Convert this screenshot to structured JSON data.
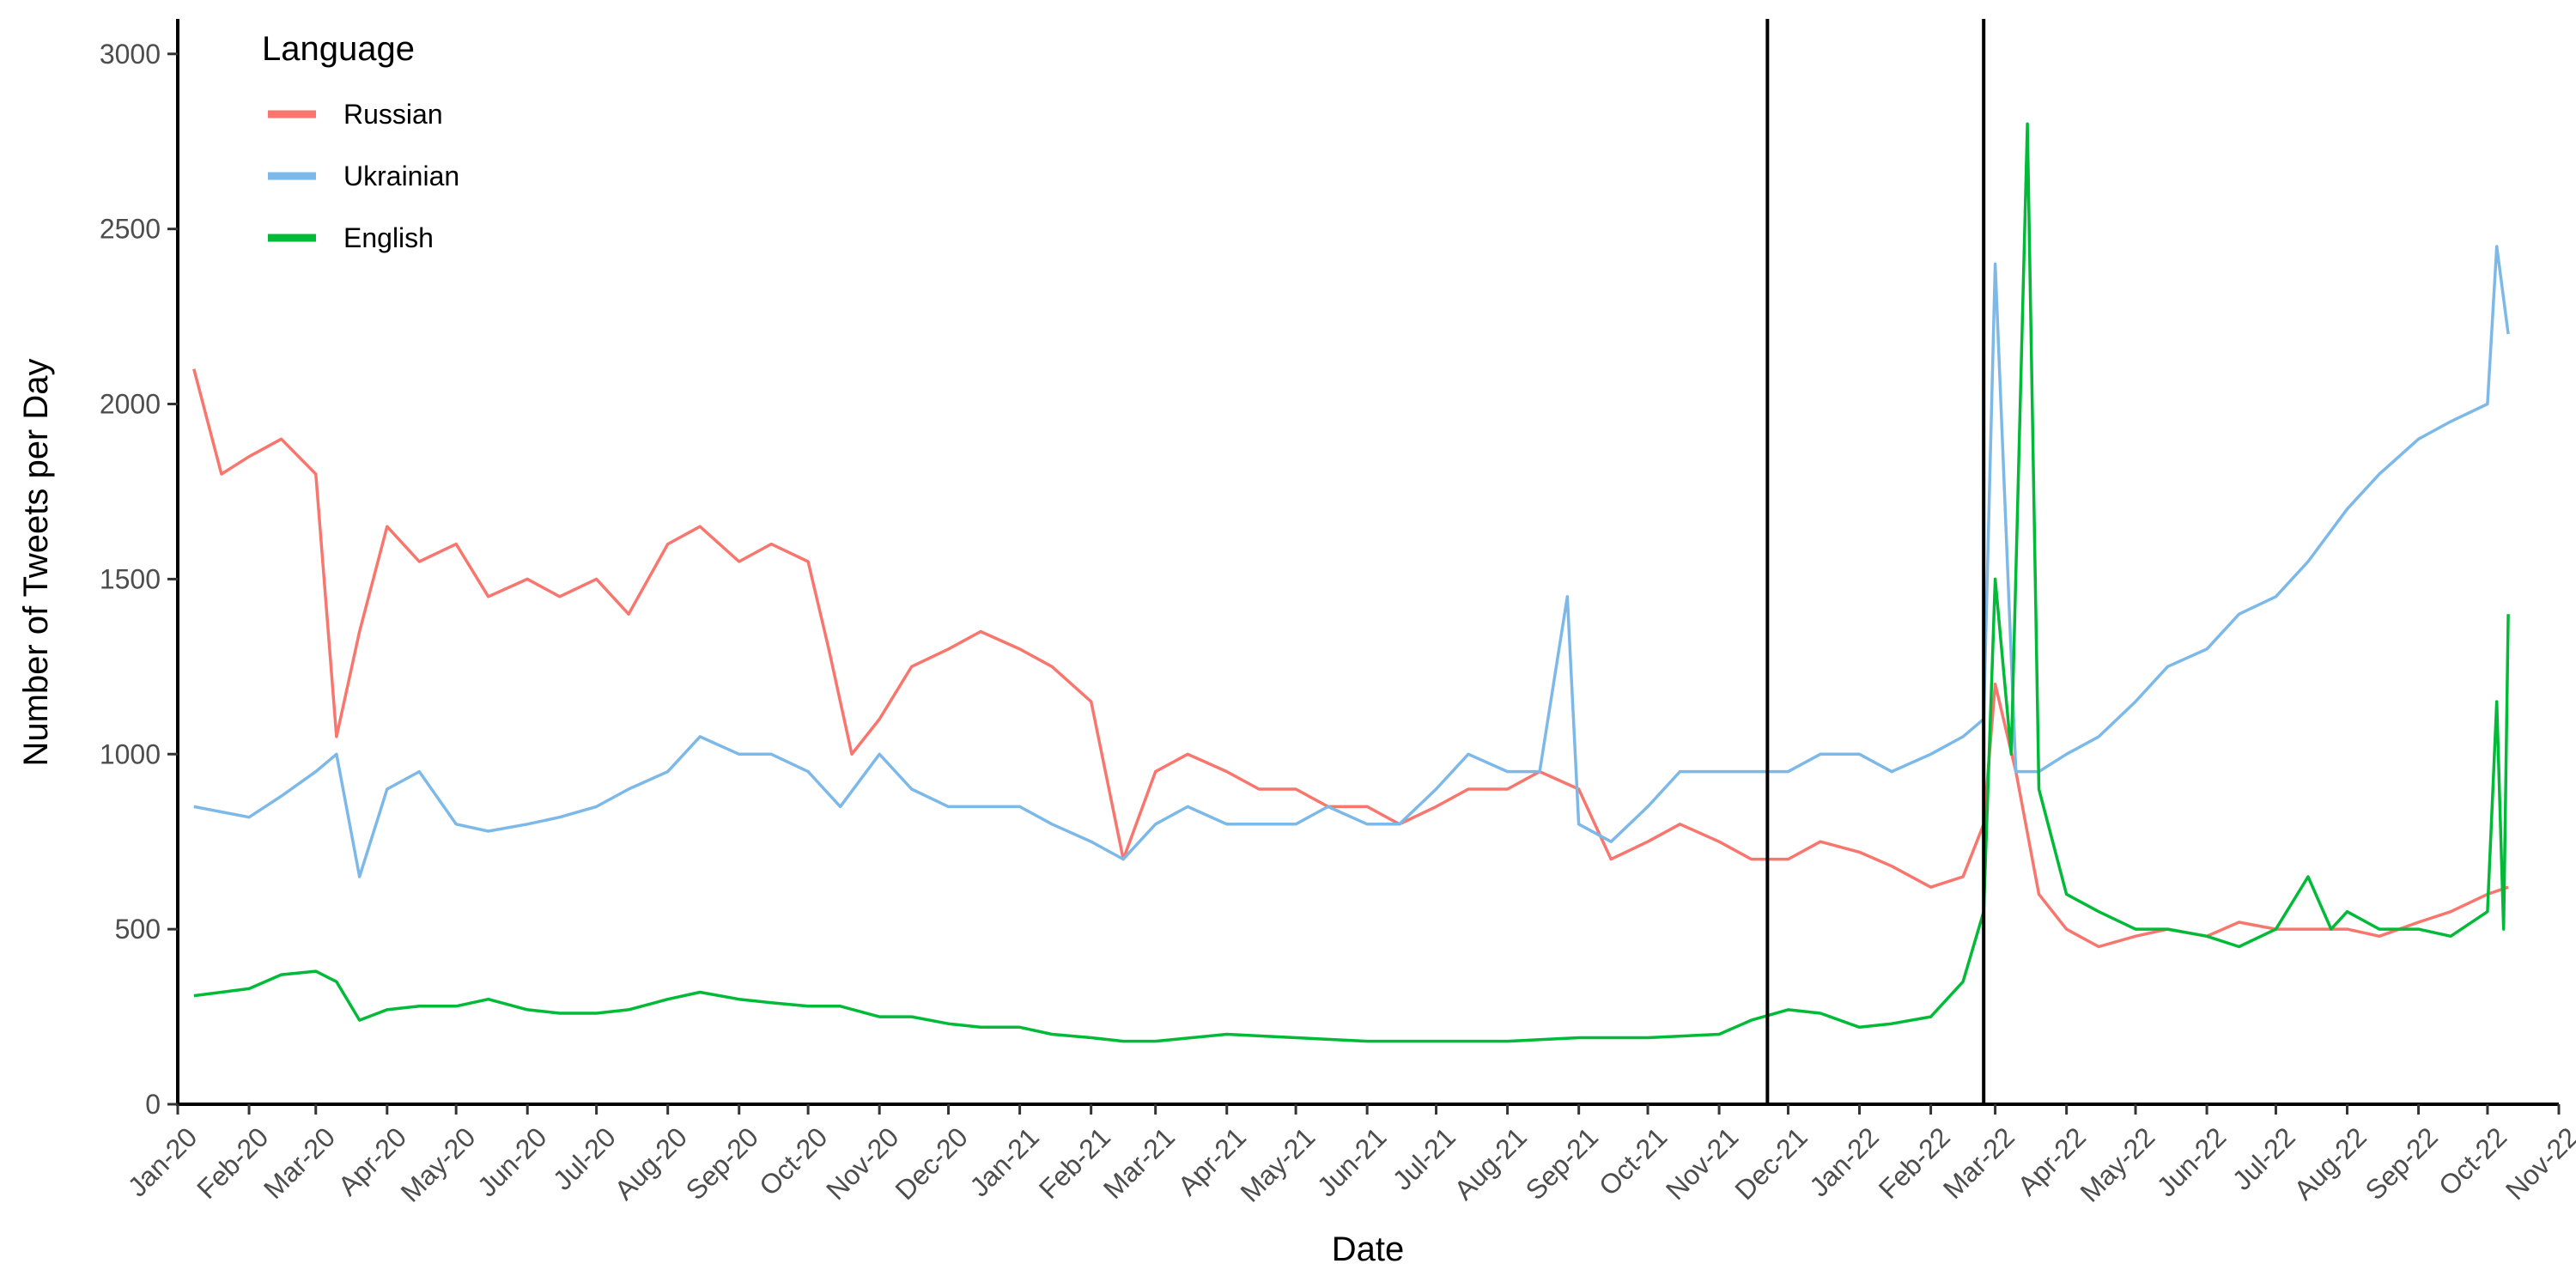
{
  "chart_data": {
    "type": "line",
    "title": "",
    "xlabel": "Date",
    "ylabel": "Number of Tweets per Day",
    "xlim": [
      "2020-01-01",
      "2022-11-01"
    ],
    "ylim": [
      0,
      3100
    ],
    "y_ticks": [
      0,
      500,
      1000,
      1500,
      2000,
      2500,
      3000
    ],
    "x_ticks": [
      "2020-01-01",
      "2020-02-01",
      "2020-03-01",
      "2020-04-01",
      "2020-05-01",
      "2020-06-01",
      "2020-07-01",
      "2020-08-01",
      "2020-09-01",
      "2020-10-01",
      "2020-11-01",
      "2020-12-01",
      "2021-01-01",
      "2021-02-01",
      "2021-03-01",
      "2021-04-01",
      "2021-05-01",
      "2021-06-01",
      "2021-07-01",
      "2021-08-01",
      "2021-09-01",
      "2021-10-01",
      "2021-11-01",
      "2021-12-01",
      "2022-01-01",
      "2022-02-01",
      "2022-03-01",
      "2022-04-01",
      "2022-05-01",
      "2022-06-01",
      "2022-07-01",
      "2022-08-01",
      "2022-09-01",
      "2022-10-01",
      "2022-11-01"
    ],
    "x_tick_labels": [
      "Jan-20",
      "Feb-20",
      "Mar-20",
      "Apr-20",
      "May-20",
      "Jun-20",
      "Jul-20",
      "Aug-20",
      "Sep-20",
      "Oct-20",
      "Nov-20",
      "Dec-20",
      "Jan-21",
      "Feb-21",
      "Mar-21",
      "Apr-21",
      "May-21",
      "Jun-21",
      "Jul-21",
      "Aug-21",
      "Sep-21",
      "Oct-21",
      "Nov-21",
      "Dec-21",
      "Jan-22",
      "Feb-22",
      "Mar-22",
      "Apr-22",
      "May-22",
      "Jun-22",
      "Jul-22",
      "Aug-22",
      "Sep-22",
      "Oct-22",
      "Nov-22"
    ],
    "vlines": [
      "2021-11-22",
      "2022-02-24"
    ],
    "grid": false,
    "legend": {
      "title": "Language",
      "position": "top-left"
    },
    "colors": {
      "Russian": "#F8766D",
      "Ukrainian": "#7DB9E8",
      "English": "#00BA38",
      "vline": "#000000"
    },
    "series": [
      {
        "name": "Russian",
        "x": [
          "2020-01-08",
          "2020-01-20",
          "2020-02-01",
          "2020-02-15",
          "2020-03-01",
          "2020-03-10",
          "2020-03-20",
          "2020-04-01",
          "2020-04-15",
          "2020-05-01",
          "2020-05-15",
          "2020-06-01",
          "2020-06-15",
          "2020-07-01",
          "2020-07-15",
          "2020-08-01",
          "2020-08-15",
          "2020-09-01",
          "2020-09-15",
          "2020-10-01",
          "2020-10-10",
          "2020-10-20",
          "2020-11-01",
          "2020-11-15",
          "2020-12-01",
          "2020-12-15",
          "2021-01-01",
          "2021-01-15",
          "2021-02-01",
          "2021-02-15",
          "2021-03-01",
          "2021-03-15",
          "2021-04-01",
          "2021-04-15",
          "2021-05-01",
          "2021-05-15",
          "2021-06-01",
          "2021-06-15",
          "2021-07-01",
          "2021-07-15",
          "2021-08-01",
          "2021-08-15",
          "2021-09-01",
          "2021-09-15",
          "2021-10-01",
          "2021-10-15",
          "2021-11-01",
          "2021-11-15",
          "2021-12-01",
          "2021-12-15",
          "2022-01-01",
          "2022-01-15",
          "2022-02-01",
          "2022-02-15",
          "2022-02-24",
          "2022-03-01",
          "2022-03-10",
          "2022-03-20",
          "2022-04-01",
          "2022-04-15",
          "2022-05-01",
          "2022-05-15",
          "2022-06-01",
          "2022-06-15",
          "2022-07-01",
          "2022-07-15",
          "2022-08-01",
          "2022-08-15",
          "2022-09-01",
          "2022-09-15",
          "2022-10-01",
          "2022-10-10"
        ],
        "values": [
          2100,
          1800,
          1850,
          1900,
          1800,
          1050,
          1350,
          1650,
          1550,
          1600,
          1450,
          1500,
          1450,
          1500,
          1400,
          1600,
          1650,
          1550,
          1600,
          1550,
          1300,
          1000,
          1100,
          1250,
          1300,
          1350,
          1300,
          1250,
          1150,
          700,
          950,
          1000,
          950,
          900,
          900,
          850,
          850,
          800,
          850,
          900,
          900,
          950,
          900,
          700,
          750,
          800,
          750,
          700,
          700,
          750,
          720,
          680,
          620,
          650,
          800,
          1200,
          950,
          600,
          500,
          450,
          480,
          500,
          480,
          520,
          500,
          500,
          500,
          480,
          520,
          550,
          600,
          620
        ]
      },
      {
        "name": "Ukrainian",
        "x": [
          "2020-01-08",
          "2020-02-01",
          "2020-02-15",
          "2020-03-01",
          "2020-03-10",
          "2020-03-20",
          "2020-04-01",
          "2020-04-15",
          "2020-05-01",
          "2020-05-15",
          "2020-06-01",
          "2020-06-15",
          "2020-07-01",
          "2020-07-15",
          "2020-08-01",
          "2020-08-15",
          "2020-09-01",
          "2020-09-15",
          "2020-10-01",
          "2020-10-15",
          "2020-11-01",
          "2020-11-15",
          "2020-12-01",
          "2020-12-15",
          "2021-01-01",
          "2021-01-15",
          "2021-02-01",
          "2021-02-15",
          "2021-03-01",
          "2021-03-15",
          "2021-04-01",
          "2021-04-15",
          "2021-05-01",
          "2021-05-15",
          "2021-06-01",
          "2021-06-15",
          "2021-07-01",
          "2021-07-15",
          "2021-08-01",
          "2021-08-15",
          "2021-08-27",
          "2021-09-01",
          "2021-09-15",
          "2021-10-01",
          "2021-10-15",
          "2021-11-01",
          "2021-11-15",
          "2021-12-01",
          "2021-12-15",
          "2022-01-01",
          "2022-01-15",
          "2022-02-01",
          "2022-02-15",
          "2022-02-24",
          "2022-03-01",
          "2022-03-10",
          "2022-03-20",
          "2022-04-01",
          "2022-04-15",
          "2022-05-01",
          "2022-05-15",
          "2022-06-01",
          "2022-06-15",
          "2022-07-01",
          "2022-07-15",
          "2022-08-01",
          "2022-08-15",
          "2022-09-01",
          "2022-09-15",
          "2022-10-01",
          "2022-10-05",
          "2022-10-10"
        ],
        "values": [
          850,
          820,
          880,
          950,
          1000,
          650,
          900,
          950,
          800,
          780,
          800,
          820,
          850,
          900,
          950,
          1050,
          1000,
          1000,
          950,
          850,
          1000,
          900,
          850,
          850,
          850,
          800,
          750,
          700,
          800,
          850,
          800,
          800,
          800,
          850,
          800,
          800,
          900,
          1000,
          950,
          950,
          1450,
          800,
          750,
          850,
          950,
          950,
          950,
          950,
          1000,
          1000,
          950,
          1000,
          1050,
          1100,
          2400,
          950,
          950,
          1000,
          1050,
          1150,
          1250,
          1300,
          1400,
          1450,
          1550,
          1700,
          1800,
          1900,
          1950,
          2000,
          2450,
          2200
        ]
      },
      {
        "name": "English",
        "x": [
          "2020-01-08",
          "2020-02-01",
          "2020-02-15",
          "2020-03-01",
          "2020-03-10",
          "2020-03-20",
          "2020-04-01",
          "2020-04-15",
          "2020-05-01",
          "2020-05-15",
          "2020-06-01",
          "2020-06-15",
          "2020-07-01",
          "2020-07-15",
          "2020-08-01",
          "2020-08-15",
          "2020-09-01",
          "2020-09-15",
          "2020-10-01",
          "2020-10-15",
          "2020-11-01",
          "2020-11-15",
          "2020-12-01",
          "2020-12-15",
          "2021-01-01",
          "2021-01-15",
          "2021-02-01",
          "2021-02-15",
          "2021-03-01",
          "2021-04-01",
          "2021-05-01",
          "2021-06-01",
          "2021-07-01",
          "2021-08-01",
          "2021-09-01",
          "2021-10-01",
          "2021-11-01",
          "2021-11-15",
          "2021-12-01",
          "2021-12-15",
          "2022-01-01",
          "2022-01-15",
          "2022-02-01",
          "2022-02-15",
          "2022-02-24",
          "2022-03-01",
          "2022-03-08",
          "2022-03-15",
          "2022-03-20",
          "2022-04-01",
          "2022-04-15",
          "2022-05-01",
          "2022-05-15",
          "2022-06-01",
          "2022-06-15",
          "2022-07-01",
          "2022-07-15",
          "2022-07-25",
          "2022-08-01",
          "2022-08-15",
          "2022-09-01",
          "2022-09-15",
          "2022-10-01",
          "2022-10-05",
          "2022-10-08",
          "2022-10-10"
        ],
        "values": [
          310,
          330,
          370,
          380,
          350,
          240,
          270,
          280,
          280,
          300,
          270,
          260,
          260,
          270,
          300,
          320,
          300,
          290,
          280,
          280,
          250,
          250,
          230,
          220,
          220,
          200,
          190,
          180,
          180,
          200,
          190,
          180,
          180,
          180,
          190,
          190,
          200,
          240,
          270,
          260,
          220,
          230,
          250,
          350,
          550,
          1500,
          1000,
          2800,
          900,
          600,
          550,
          500,
          500,
          480,
          450,
          500,
          650,
          500,
          550,
          500,
          500,
          480,
          550,
          1150,
          500,
          1400
        ]
      }
    ]
  }
}
